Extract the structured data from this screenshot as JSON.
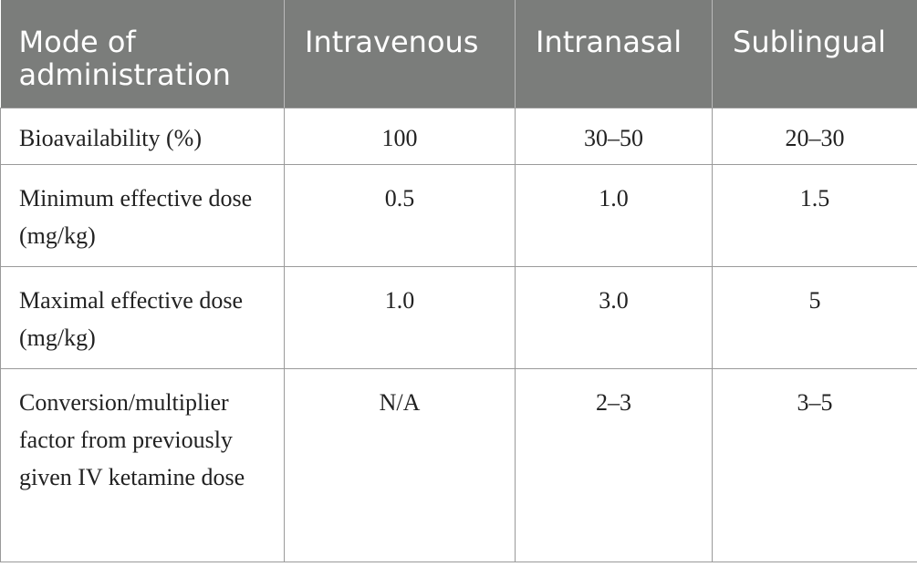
{
  "table": {
    "headers": [
      "Mode of administration",
      "Intravenous",
      "Intranasal",
      "Sublingual"
    ],
    "rows": [
      {
        "label": "Bioavailability (%)",
        "intravenous": "100",
        "intranasal": "30–50",
        "sublingual": "20–30"
      },
      {
        "label": "Minimum effective dose (mg/kg)",
        "intravenous": "0.5",
        "intranasal": "1.0",
        "sublingual": "1.5"
      },
      {
        "label": "Maximal effective dose (mg/kg)",
        "intravenous": "1.0",
        "intranasal": "3.0",
        "sublingual": "5"
      },
      {
        "label": "Conversion/multiplier factor from previously given IV ketamine dose",
        "intravenous": "N/A",
        "intranasal": "2–3",
        "sublingual": "3–5"
      }
    ]
  },
  "colors": {
    "header_background": "#7b7d7b",
    "header_text": "#ffffff",
    "grid_line": "#9a9a9a"
  }
}
